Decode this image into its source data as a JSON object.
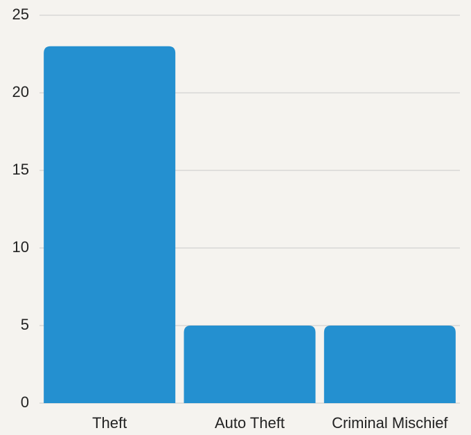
{
  "chart_data": {
    "type": "bar",
    "categories": [
      "Theft",
      "Auto Theft",
      "Criminal Mischief"
    ],
    "values": [
      23,
      5,
      5
    ],
    "color": "#2490d0",
    "ylim": [
      0,
      25
    ],
    "yticks": [
      0,
      5,
      10,
      15,
      20,
      25
    ],
    "grid": true
  }
}
